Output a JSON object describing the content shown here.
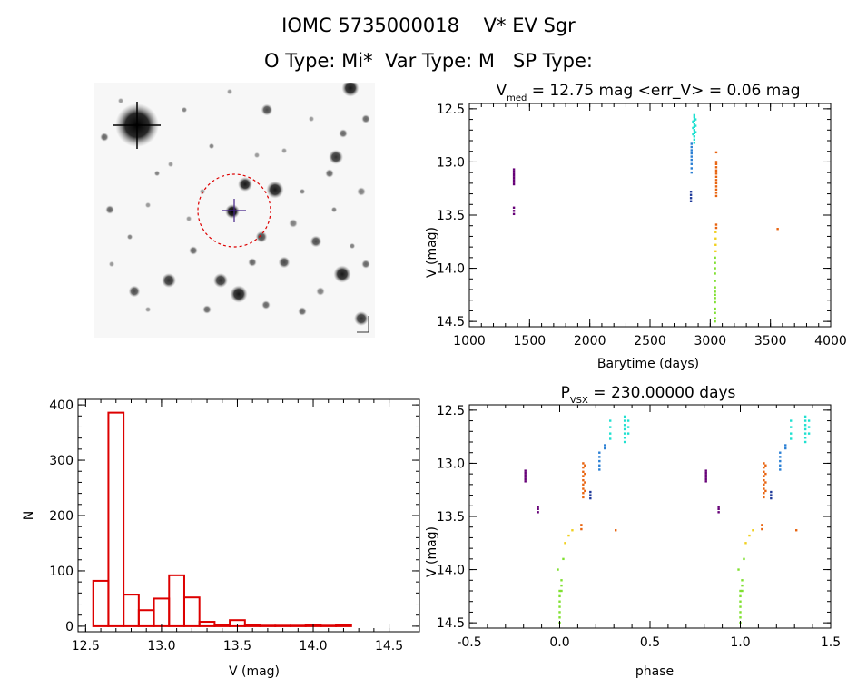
{
  "header": {
    "line1": "IOMC 5735000018    V* EV Sgr",
    "line2": "O Type: Mi*  Var Type: M   SP Type:"
  },
  "colors": {
    "histogram": "#dd0000",
    "circle": "#dd0000",
    "phase_colors": [
      "#660077",
      "#1f3a9a",
      "#2a7fd4",
      "#1fe0d0",
      "#e86410",
      "#f0d020",
      "#7fe030"
    ]
  },
  "chart_data": [
    {
      "type": "scatter",
      "title": "V_med = 12.75 mag <err_V> = 0.06 mag",
      "xlabel": "Barytime (days)",
      "ylabel": "V (mag)",
      "xlim": [
        1000,
        4000
      ],
      "ylim": [
        14.55,
        12.45
      ],
      "y_inverted": true,
      "xticks": [
        "1000",
        "1500",
        "2000",
        "2500",
        "3000",
        "3500",
        "4000"
      ],
      "yticks": [
        "12.5",
        "13.0",
        "13.5",
        "14.0",
        "14.5"
      ],
      "series": [
        {
          "color": "#660077",
          "points": [
            [
              1370,
              13.07
            ],
            [
              1370,
              13.09
            ],
            [
              1370,
              13.11
            ],
            [
              1370,
              13.13
            ],
            [
              1370,
              13.15
            ],
            [
              1370,
              13.17
            ],
            [
              1370,
              13.19
            ],
            [
              1370,
              13.21
            ],
            [
              1370,
              13.43
            ],
            [
              1370,
              13.46
            ],
            [
              1370,
              13.49
            ]
          ]
        },
        {
          "color": "#1f3a9a",
          "points": [
            [
              2840,
              13.28
            ],
            [
              2840,
              13.31
            ],
            [
              2840,
              13.34
            ],
            [
              2840,
              13.37
            ]
          ]
        },
        {
          "color": "#2a7fd4",
          "points": [
            [
              2845,
              12.83
            ],
            [
              2845,
              12.86
            ],
            [
              2845,
              12.89
            ],
            [
              2845,
              12.92
            ],
            [
              2845,
              12.95
            ],
            [
              2845,
              12.98
            ],
            [
              2845,
              13.02
            ],
            [
              2845,
              13.06
            ],
            [
              2845,
              13.1
            ]
          ]
        },
        {
          "color": "#1fe0d0",
          "points": [
            [
              2868,
              12.56
            ],
            [
              2868,
              12.58
            ],
            [
              2868,
              12.61
            ],
            [
              2868,
              12.64
            ],
            [
              2868,
              12.67
            ],
            [
              2868,
              12.7
            ],
            [
              2868,
              12.73
            ],
            [
              2868,
              12.76
            ],
            [
              2868,
              12.79
            ],
            [
              2868,
              12.82
            ],
            [
              2858,
              12.62
            ],
            [
              2858,
              12.68
            ],
            [
              2858,
              12.74
            ],
            [
              2878,
              12.6
            ],
            [
              2878,
              12.66
            ],
            [
              2878,
              12.72
            ]
          ]
        },
        {
          "color": "#e86410",
          "points": [
            [
              3050,
              12.91
            ],
            [
              3050,
              13.0
            ],
            [
              3050,
              13.02
            ],
            [
              3050,
              13.05
            ],
            [
              3050,
              13.08
            ],
            [
              3050,
              13.11
            ],
            [
              3050,
              13.14
            ],
            [
              3050,
              13.17
            ],
            [
              3050,
              13.2
            ],
            [
              3050,
              13.23
            ],
            [
              3050,
              13.26
            ],
            [
              3050,
              13.29
            ],
            [
              3050,
              13.32
            ],
            [
              3050,
              13.59
            ],
            [
              3050,
              13.62
            ],
            [
              3560,
              13.63
            ]
          ]
        },
        {
          "color": "#f0d020",
          "points": [
            [
              3045,
              13.66
            ],
            [
              3045,
              13.72
            ],
            [
              3045,
              13.78
            ],
            [
              3045,
              13.84
            ]
          ]
        },
        {
          "color": "#7fe030",
          "points": [
            [
              3040,
              13.9
            ],
            [
              3040,
              13.95
            ],
            [
              3040,
              14.0
            ],
            [
              3040,
              14.05
            ],
            [
              3040,
              14.12
            ],
            [
              3040,
              14.18
            ],
            [
              3040,
              14.22
            ],
            [
              3040,
              14.25
            ],
            [
              3040,
              14.28
            ],
            [
              3040,
              14.32
            ],
            [
              3040,
              14.38
            ],
            [
              3040,
              14.42
            ],
            [
              3040,
              14.47
            ],
            [
              3040,
              14.5
            ]
          ]
        }
      ]
    },
    {
      "type": "bar",
      "title": "",
      "xlabel": "V (mag)",
      "ylabel": "N",
      "xlim": [
        12.45,
        14.7
      ],
      "ylim": [
        -10,
        410
      ],
      "xticks": [
        "12.5",
        "13.0",
        "13.5",
        "14.0",
        "14.5"
      ],
      "yticks": [
        "0",
        "100",
        "200",
        "300",
        "400"
      ],
      "bin_edges": [
        12.55,
        12.65,
        12.75,
        12.85,
        12.95,
        13.05,
        13.15,
        13.25,
        13.35,
        13.45,
        13.55,
        13.65,
        13.75,
        13.85,
        13.95,
        14.05,
        14.15,
        14.25,
        14.35,
        14.45
      ],
      "values": [
        82,
        386,
        57,
        29,
        50,
        92,
        52,
        8,
        3,
        11,
        3,
        1,
        1,
        1,
        2,
        1,
        3,
        0,
        0
      ]
    },
    {
      "type": "scatter",
      "title": "P_VSX = 230.00000 days",
      "xlabel": "phase",
      "ylabel": "V (mag)",
      "xlim": [
        -0.5,
        1.5
      ],
      "ylim": [
        14.55,
        12.45
      ],
      "y_inverted": true,
      "xticks": [
        "-0.5",
        "0.0",
        "0.5",
        "1.0",
        "1.5"
      ],
      "yticks": [
        "12.5",
        "13.0",
        "13.5",
        "14.0",
        "14.5"
      ],
      "series": [
        {
          "color": "#660077",
          "points": [
            [
              -0.19,
              13.07
            ],
            [
              -0.19,
              13.09
            ],
            [
              -0.19,
              13.11
            ],
            [
              -0.19,
              13.13
            ],
            [
              -0.19,
              13.15
            ],
            [
              -0.19,
              13.17
            ],
            [
              -0.12,
              13.41
            ],
            [
              -0.12,
              13.43
            ],
            [
              -0.12,
              13.46
            ],
            [
              0.81,
              13.07
            ],
            [
              0.81,
              13.09
            ],
            [
              0.81,
              13.11
            ],
            [
              0.81,
              13.13
            ],
            [
              0.81,
              13.15
            ],
            [
              0.81,
              13.17
            ],
            [
              0.88,
              13.41
            ],
            [
              0.88,
              13.43
            ],
            [
              0.88,
              13.46
            ]
          ]
        },
        {
          "color": "#1f3a9a",
          "points": [
            [
              0.17,
              13.27
            ],
            [
              0.17,
              13.3
            ],
            [
              0.17,
              13.33
            ],
            [
              1.17,
              13.27
            ],
            [
              1.17,
              13.3
            ],
            [
              1.17,
              13.33
            ]
          ]
        },
        {
          "color": "#2a7fd4",
          "points": [
            [
              0.22,
              12.9
            ],
            [
              0.22,
              12.94
            ],
            [
              0.22,
              12.98
            ],
            [
              0.22,
              13.02
            ],
            [
              0.22,
              13.06
            ],
            [
              0.25,
              12.83
            ],
            [
              0.25,
              12.86
            ],
            [
              1.22,
              12.9
            ],
            [
              1.22,
              12.94
            ],
            [
              1.22,
              12.98
            ],
            [
              1.22,
              13.02
            ],
            [
              1.22,
              13.06
            ],
            [
              1.25,
              12.83
            ],
            [
              1.25,
              12.86
            ]
          ]
        },
        {
          "color": "#1fe0d0",
          "points": [
            [
              0.28,
              12.6
            ],
            [
              0.28,
              12.66
            ],
            [
              0.28,
              12.72
            ],
            [
              0.28,
              12.77
            ],
            [
              0.36,
              12.56
            ],
            [
              0.36,
              12.6
            ],
            [
              0.36,
              12.64
            ],
            [
              0.36,
              12.68
            ],
            [
              0.36,
              12.72
            ],
            [
              0.36,
              12.76
            ],
            [
              0.36,
              12.8
            ],
            [
              0.38,
              12.6
            ],
            [
              0.38,
              12.66
            ],
            [
              0.38,
              12.72
            ],
            [
              1.28,
              12.6
            ],
            [
              1.28,
              12.66
            ],
            [
              1.28,
              12.72
            ],
            [
              1.28,
              12.77
            ],
            [
              1.36,
              12.56
            ],
            [
              1.36,
              12.6
            ],
            [
              1.36,
              12.64
            ],
            [
              1.36,
              12.68
            ],
            [
              1.36,
              12.72
            ],
            [
              1.36,
              12.76
            ],
            [
              1.36,
              12.8
            ],
            [
              1.38,
              12.6
            ],
            [
              1.38,
              12.66
            ],
            [
              1.38,
              12.72
            ]
          ]
        },
        {
          "color": "#e86410",
          "points": [
            [
              0.13,
              13.0
            ],
            [
              0.13,
              13.04
            ],
            [
              0.13,
              13.08
            ],
            [
              0.13,
              13.12
            ],
            [
              0.13,
              13.16
            ],
            [
              0.13,
              13.2
            ],
            [
              0.13,
              13.24
            ],
            [
              0.13,
              13.28
            ],
            [
              0.13,
              13.32
            ],
            [
              0.14,
              13.02
            ],
            [
              0.14,
              13.1
            ],
            [
              0.14,
              13.18
            ],
            [
              0.14,
              13.26
            ],
            [
              0.12,
              13.58
            ],
            [
              0.12,
              13.62
            ],
            [
              0.31,
              13.63
            ],
            [
              1.13,
              13.0
            ],
            [
              1.13,
              13.04
            ],
            [
              1.13,
              13.08
            ],
            [
              1.13,
              13.12
            ],
            [
              1.13,
              13.16
            ],
            [
              1.13,
              13.2
            ],
            [
              1.13,
              13.24
            ],
            [
              1.13,
              13.28
            ],
            [
              1.13,
              13.32
            ],
            [
              1.14,
              13.02
            ],
            [
              1.14,
              13.1
            ],
            [
              1.14,
              13.18
            ],
            [
              1.14,
              13.26
            ],
            [
              1.12,
              13.58
            ],
            [
              1.12,
              13.62
            ],
            [
              1.31,
              13.63
            ]
          ]
        },
        {
          "color": "#f0d020",
          "points": [
            [
              0.03,
              13.75
            ],
            [
              0.05,
              13.68
            ],
            [
              0.07,
              13.63
            ],
            [
              1.03,
              13.75
            ],
            [
              1.05,
              13.68
            ],
            [
              1.07,
              13.63
            ]
          ]
        },
        {
          "color": "#7fe030",
          "points": [
            [
              0.0,
              14.2
            ],
            [
              0.0,
              14.25
            ],
            [
              0.0,
              14.3
            ],
            [
              0.0,
              14.35
            ],
            [
              0.0,
              14.4
            ],
            [
              0.0,
              14.45
            ],
            [
              0.0,
              14.5
            ],
            [
              0.01,
              14.1
            ],
            [
              0.01,
              14.15
            ],
            [
              0.01,
              14.2
            ],
            [
              -0.01,
              14.0
            ],
            [
              0.02,
              13.9
            ],
            [
              1.0,
              14.2
            ],
            [
              1.0,
              14.25
            ],
            [
              1.0,
              14.3
            ],
            [
              1.0,
              14.35
            ],
            [
              1.0,
              14.4
            ],
            [
              1.0,
              14.45
            ],
            [
              1.0,
              14.5
            ],
            [
              1.01,
              14.1
            ],
            [
              1.01,
              14.15
            ],
            [
              1.01,
              14.2
            ],
            [
              0.99,
              14.0
            ],
            [
              1.02,
              13.9
            ]
          ]
        }
      ]
    }
  ]
}
